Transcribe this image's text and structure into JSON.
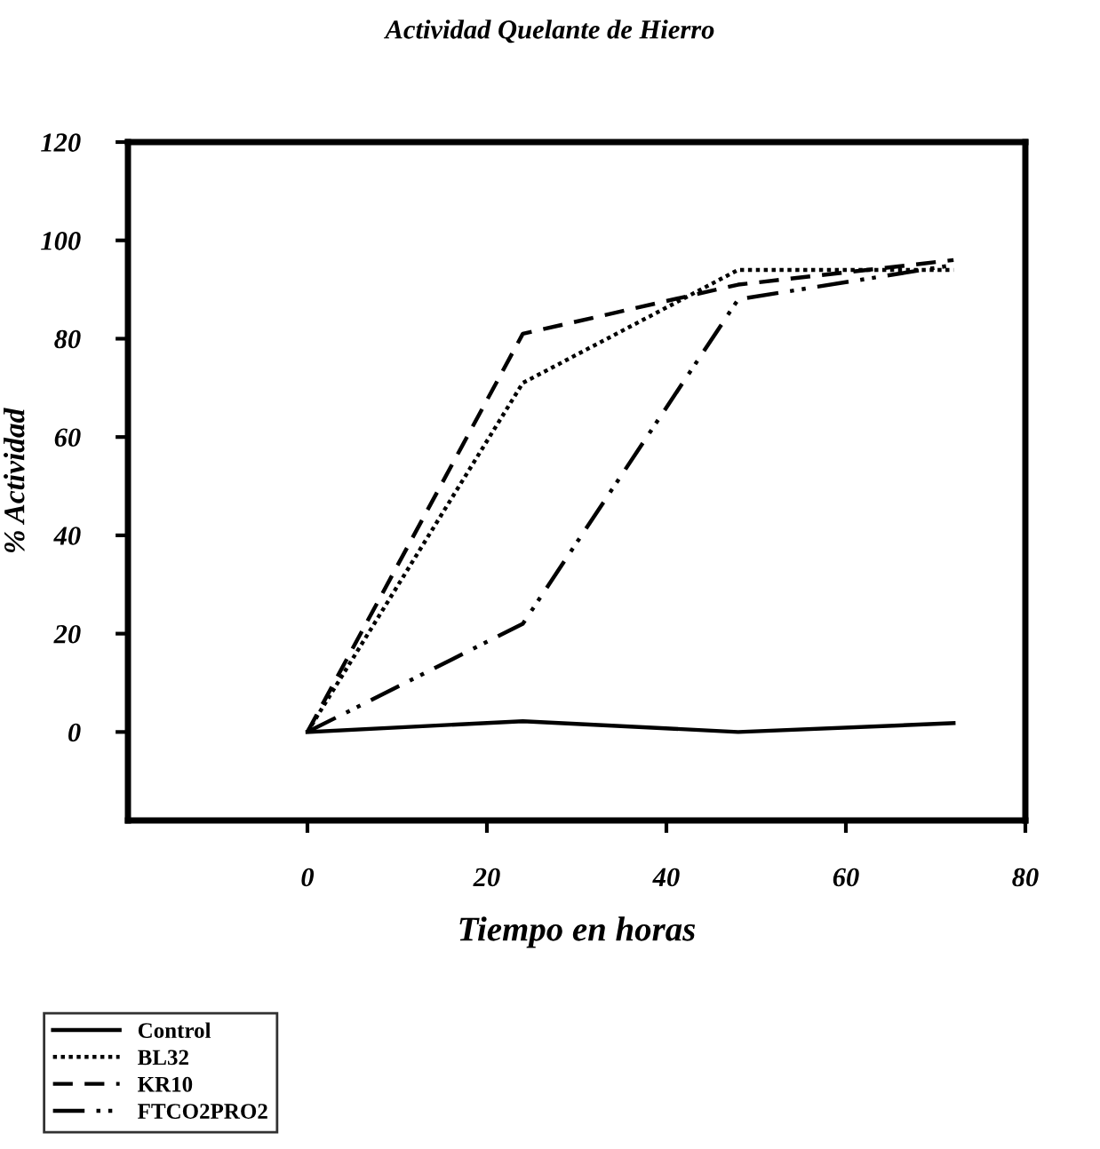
{
  "chart_data": {
    "type": "line",
    "title": "Actividad Quelante de Hierro",
    "xlabel": "Tiempo en horas",
    "ylabel": "% Actividad",
    "x": [
      0,
      24,
      48,
      72
    ],
    "series": [
      {
        "name": "Control",
        "color": "#000000",
        "line_style": "solid",
        "values": [
          0,
          2.2,
          0,
          1.8
        ]
      },
      {
        "name": "BL32",
        "color": "#000000",
        "line_style": "dotted",
        "values": [
          0,
          71,
          94,
          94
        ]
      },
      {
        "name": "KR10",
        "color": "#000000",
        "line_style": "dashed",
        "values": [
          0,
          81,
          91,
          96
        ]
      },
      {
        "name": "FTCO2PRO2",
        "color": "#000000",
        "line_style": "dashdot",
        "values": [
          0,
          22,
          88,
          95
        ]
      }
    ],
    "xlim": [
      -20,
      80
    ],
    "xticks": [
      0,
      20,
      40,
      60,
      80
    ],
    "ylim": [
      -18,
      120
    ],
    "yticks": [
      0,
      20,
      40,
      60,
      80,
      100,
      120
    ],
    "grid": false,
    "legend": "bottom left",
    "marker": "none"
  }
}
